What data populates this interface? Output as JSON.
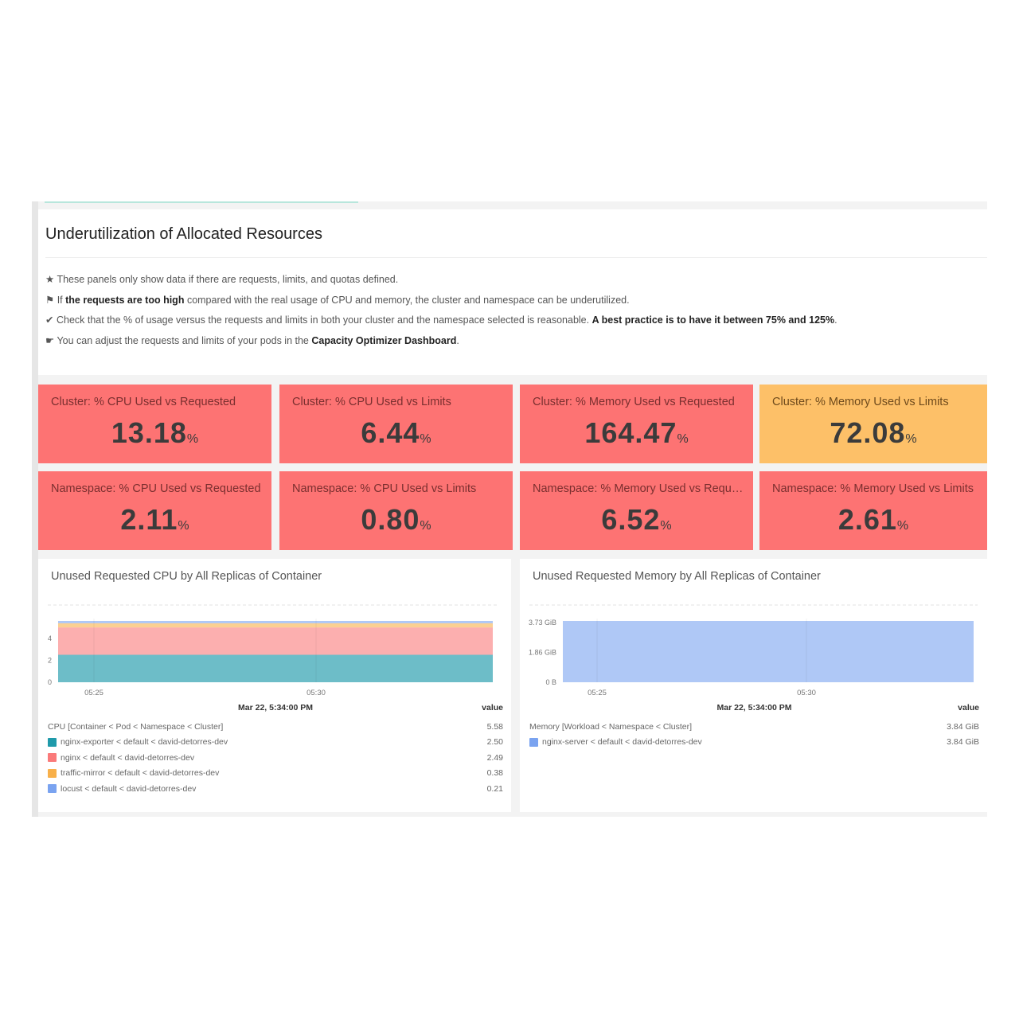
{
  "title": "Underutilization of Allocated Resources",
  "notes": [
    {
      "icon": "★",
      "parts": [
        {
          "t": "These panels only show data if there are requests, limits, and quotas defined.",
          "b": false
        }
      ]
    },
    {
      "icon": "⚑",
      "parts": [
        {
          "t": "If ",
          "b": false
        },
        {
          "t": "the requests are too high",
          "b": true
        },
        {
          "t": " compared with the real usage of CPU and memory, the cluster and namespace can be underutilized.",
          "b": false
        }
      ]
    },
    {
      "icon": "✔",
      "parts": [
        {
          "t": "Check that the % of usage versus the requests and limits in both your cluster and the namespace selected is reasonable. ",
          "b": false
        },
        {
          "t": "A best practice is to have it between 75% and 125%",
          "b": true
        },
        {
          "t": ".",
          "b": false
        }
      ]
    },
    {
      "icon": "☛",
      "parts": [
        {
          "t": "You can adjust the requests and limits of your pods in the ",
          "b": false
        },
        {
          "t": "Capacity Optimizer Dashboard",
          "b": true
        },
        {
          "t": ".",
          "b": false
        }
      ]
    }
  ],
  "colors": {
    "bad": "#fd7373",
    "warn": "#fdc068"
  },
  "stats": [
    {
      "title": "Cluster: % CPU Used vs Requested",
      "value": "13.18",
      "unit": "%",
      "status": "bad"
    },
    {
      "title": "Cluster: % CPU Used vs Limits",
      "value": "6.44",
      "unit": "%",
      "status": "bad"
    },
    {
      "title": "Cluster: % Memory Used vs Requested",
      "value": "164.47",
      "unit": "%",
      "status": "bad"
    },
    {
      "title": "Cluster: % Memory Used vs Limits",
      "value": "72.08",
      "unit": "%",
      "status": "warn"
    },
    {
      "title": "Namespace: % CPU Used vs Requested",
      "value": "2.11",
      "unit": "%",
      "status": "bad"
    },
    {
      "title": "Namespace: % CPU Used vs Limits",
      "value": "0.80",
      "unit": "%",
      "status": "bad"
    },
    {
      "title": "Namespace: % Memory Used vs Requested",
      "value": "6.52",
      "unit": "%",
      "status": "bad"
    },
    {
      "title": "Namespace: % Memory Used vs Limits",
      "value": "2.61",
      "unit": "%",
      "status": "bad"
    }
  ],
  "chart_data": [
    {
      "type": "area",
      "title": "Unused Requested CPU by All Replicas of Container",
      "stacked": true,
      "x_ticks": [
        "05:25",
        "05:30"
      ],
      "y_ticks": [
        "0",
        "2",
        "4"
      ],
      "ylim": [
        0,
        6.5
      ],
      "tooltip_time": "Mar 22, 5:34:00 PM",
      "value_header": "value",
      "total_label": "CPU [Container < Pod < Namespace < Cluster]",
      "total_value": "5.58",
      "series": [
        {
          "name": "nginx-exporter < default < david-detorres-dev",
          "value": 2.5,
          "label": "2.50",
          "color": "#1f9aaa"
        },
        {
          "name": "nginx < default < david-detorres-dev",
          "value": 2.49,
          "label": "2.49",
          "color": "#fa7a7a"
        },
        {
          "name": "traffic-mirror < default < david-detorres-dev",
          "value": 0.38,
          "label": "0.38",
          "color": "#f8b04a"
        },
        {
          "name": "locust < default < david-detorres-dev",
          "value": 0.21,
          "label": "0.21",
          "color": "#7aa3f0"
        }
      ]
    },
    {
      "type": "area",
      "title": "Unused Requested Memory by All Replicas of Container",
      "stacked": true,
      "x_ticks": [
        "05:25",
        "05:30"
      ],
      "y_ticks": [
        "0 B",
        "1.86 GiB",
        "3.73 GiB"
      ],
      "y_tick_values": [
        0,
        1.86,
        3.73
      ],
      "ylim": [
        0,
        4.6
      ],
      "tooltip_time": "Mar 22, 5:34:00 PM",
      "value_header": "value",
      "total_label": "Memory [Workload < Namespace < Cluster]",
      "total_value": "3.84 GiB",
      "series": [
        {
          "name": "nginx-server < default < david-detorres-dev",
          "value": 3.84,
          "label": "3.84 GiB",
          "color": "#7aa3f0"
        }
      ]
    }
  ]
}
